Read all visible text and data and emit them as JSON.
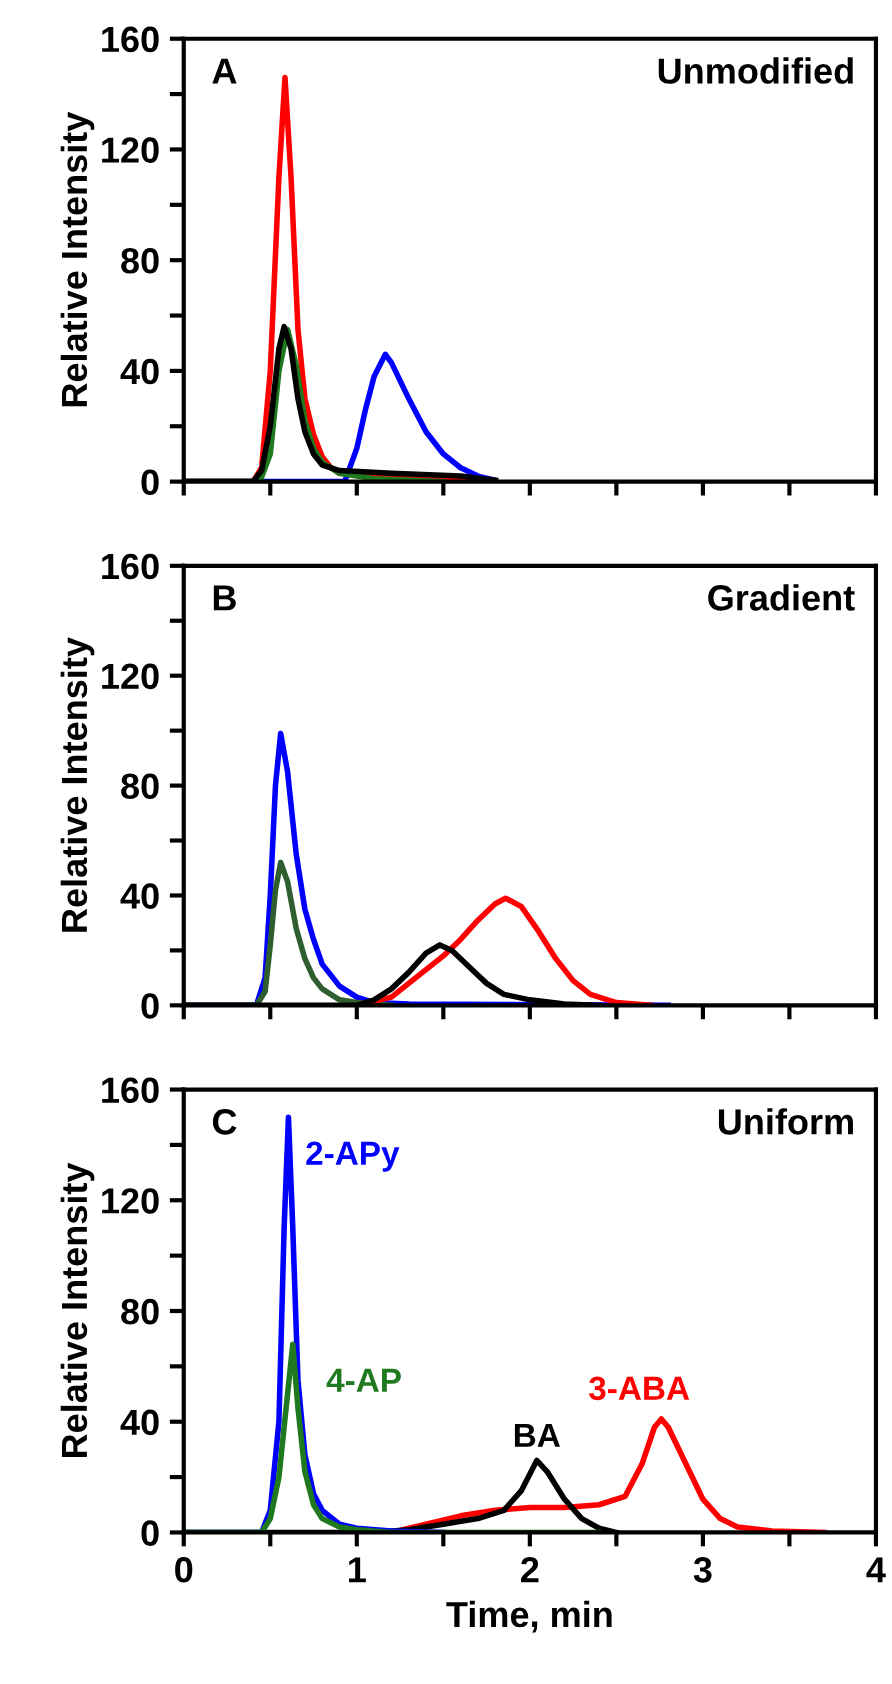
{
  "chart_data": [
    {
      "type": "line",
      "annotations": [
        "A",
        "Unmodified"
      ],
      "ylabel": "Relative Intensity",
      "xlim": [
        0,
        4
      ],
      "ylim": [
        0,
        160
      ],
      "tick_labels": "y",
      "grid": false,
      "legend": false,
      "xticks": [
        {
          "value": 0,
          "label": null
        },
        {
          "value": 0.5,
          "label": null
        },
        {
          "value": 1,
          "label": null
        },
        {
          "value": 1.5,
          "label": null
        },
        {
          "value": 2,
          "label": null
        },
        {
          "value": 2.5,
          "label": null
        },
        {
          "value": 3,
          "label": null
        },
        {
          "value": 3.5,
          "label": null
        },
        {
          "value": 4,
          "label": null
        }
      ],
      "yticks": [
        0,
        {
          "value": 20,
          "label": null
        },
        40,
        {
          "value": 60,
          "label": null
        },
        80,
        {
          "value": 100,
          "label": null
        },
        120,
        {
          "value": 140,
          "label": null
        },
        160
      ],
      "series": [
        {
          "color": "#ff0000",
          "x": [
            0,
            0.4,
            0.45,
            0.5,
            0.55,
            0.585,
            0.62,
            0.66,
            0.7,
            0.75,
            0.8,
            0.85,
            0.9,
            1.3,
            1.8
          ],
          "values": [
            0,
            0,
            5,
            40,
            110,
            146,
            110,
            55,
            30,
            17,
            9,
            5,
            3,
            1,
            0
          ]
        },
        {
          "color": "#0000ff",
          "x": [
            0,
            0.93,
            1.0,
            1.05,
            1.1,
            1.165,
            1.2,
            1.3,
            1.4,
            1.5,
            1.6,
            1.7,
            1.8
          ],
          "values": [
            0,
            0,
            12,
            26,
            38,
            46,
            43,
            30,
            18,
            10,
            5,
            2,
            0.5
          ]
        },
        {
          "color": "#1f7a1f",
          "x": [
            0,
            0.44,
            0.5,
            0.55,
            0.6,
            0.65,
            0.7,
            0.75,
            0.8,
            0.9,
            1.1,
            1.5
          ],
          "values": [
            0,
            0,
            10,
            40,
            55,
            42,
            22,
            12,
            7,
            3,
            1,
            0
          ]
        },
        {
          "color": "#000000",
          "x": [
            0,
            0.4,
            0.45,
            0.5,
            0.55,
            0.58,
            0.62,
            0.66,
            0.7,
            0.75,
            0.8,
            0.9,
            1.2,
            1.6,
            1.8
          ],
          "values": [
            0,
            0,
            4,
            20,
            48,
            56,
            48,
            30,
            18,
            10,
            6,
            4,
            3,
            2,
            0.5
          ]
        }
      ]
    },
    {
      "type": "line",
      "annotations": [
        "B",
        "Gradient"
      ],
      "ylabel": "Relative Intensity",
      "xlim": [
        0,
        4
      ],
      "ylim": [
        0,
        160
      ],
      "tick_labels": "y",
      "grid": false,
      "legend": false,
      "xticks": [
        {
          "value": 0,
          "label": null
        },
        {
          "value": 0.5,
          "label": null
        },
        {
          "value": 1,
          "label": null
        },
        {
          "value": 1.5,
          "label": null
        },
        {
          "value": 2,
          "label": null
        },
        {
          "value": 2.5,
          "label": null
        },
        {
          "value": 3,
          "label": null
        },
        {
          "value": 3.5,
          "label": null
        },
        {
          "value": 4,
          "label": null
        }
      ],
      "yticks": [
        0,
        {
          "value": 20,
          "label": null
        },
        40,
        {
          "value": 60,
          "label": null
        },
        80,
        {
          "value": 100,
          "label": null
        },
        120,
        {
          "value": 140,
          "label": null
        },
        160
      ],
      "series": [
        {
          "color": "#0000ff",
          "x": [
            0,
            0.42,
            0.47,
            0.5,
            0.53,
            0.56,
            0.6,
            0.65,
            0.7,
            0.75,
            0.8,
            0.9,
            1.0,
            1.1,
            1.3,
            2.8
          ],
          "values": [
            0,
            0,
            10,
            40,
            80,
            99,
            85,
            55,
            35,
            24,
            15,
            7,
            3,
            1,
            0.5,
            0
          ]
        },
        {
          "color": "#2f5f2f",
          "x": [
            0,
            0.42,
            0.47,
            0.5,
            0.53,
            0.56,
            0.6,
            0.65,
            0.7,
            0.75,
            0.8,
            0.9,
            1.0,
            1.2
          ],
          "values": [
            0,
            0,
            5,
            22,
            42,
            52,
            45,
            28,
            17,
            10,
            6,
            2,
            1,
            0
          ]
        },
        {
          "color": "#ff0000",
          "x": [
            1.0,
            1.2,
            1.4,
            1.5,
            1.6,
            1.7,
            1.8,
            1.86,
            1.95,
            2.05,
            2.15,
            2.25,
            2.35,
            2.5,
            2.7
          ],
          "values": [
            0,
            3,
            13,
            18,
            24,
            31,
            37,
            39,
            36,
            27,
            17,
            9,
            4,
            1,
            0
          ]
        },
        {
          "color": "#000000",
          "x": [
            0,
            1.0,
            1.1,
            1.2,
            1.3,
            1.4,
            1.48,
            1.55,
            1.65,
            1.75,
            1.85,
            2.0,
            2.2,
            2.4
          ],
          "values": [
            0,
            0,
            2,
            6,
            12,
            19,
            22,
            20,
            14,
            8,
            4,
            2,
            0.5,
            0
          ]
        }
      ]
    },
    {
      "type": "line",
      "annotations": [
        "C",
        "Uniform"
      ],
      "xlabel": "Time, min",
      "ylabel": "Relative Intensity",
      "xlim": [
        0,
        4
      ],
      "ylim": [
        0,
        160
      ],
      "grid": false,
      "legend": false,
      "xticks": [
        0,
        {
          "value": 0.5,
          "label": null
        },
        1,
        {
          "value": 1.5,
          "label": null
        },
        2,
        {
          "value": 2.5,
          "label": null
        },
        3,
        {
          "value": 3.5,
          "label": null
        },
        4
      ],
      "yticks": [
        0,
        {
          "value": 20,
          "label": null
        },
        40,
        {
          "value": 60,
          "label": null
        },
        80,
        {
          "value": 100,
          "label": null
        },
        120,
        {
          "value": 140,
          "label": null
        },
        160
      ],
      "series": [
        {
          "name": "3-ABA",
          "color": "#ff0000",
          "x": [
            1.2,
            1.4,
            1.6,
            1.8,
            2.0,
            2.2,
            2.4,
            2.55,
            2.65,
            2.72,
            2.76,
            2.8,
            2.9,
            3.0,
            3.1,
            3.2,
            3.4,
            3.7
          ],
          "values": [
            0,
            3,
            6,
            8,
            9,
            9,
            10,
            13,
            25,
            38,
            41,
            38,
            25,
            12,
            5,
            2,
            0.5,
            0
          ]
        },
        {
          "name": "BA",
          "color": "#000000",
          "x": [
            0,
            1.1,
            1.3,
            1.5,
            1.7,
            1.85,
            1.95,
            2.04,
            2.1,
            2.2,
            2.3,
            2.4,
            2.5
          ],
          "values": [
            0,
            0,
            1,
            3,
            5,
            8,
            15,
            26,
            22,
            12,
            5,
            1.5,
            0
          ]
        },
        {
          "name": "2-APy",
          "color": "#0000ff",
          "x": [
            0,
            0.45,
            0.5,
            0.55,
            0.58,
            0.605,
            0.63,
            0.66,
            0.7,
            0.75,
            0.8,
            0.9,
            1.0,
            1.2,
            1.5
          ],
          "values": [
            0,
            0,
            8,
            40,
            110,
            150,
            110,
            55,
            28,
            14,
            8,
            3,
            1.5,
            0.5,
            0
          ]
        },
        {
          "name": "4-AP",
          "color": "#1f7a1f",
          "x": [
            0,
            0.45,
            0.5,
            0.55,
            0.6,
            0.63,
            0.66,
            0.7,
            0.75,
            0.8,
            0.9,
            1.0,
            1.2,
            2.4
          ],
          "values": [
            0,
            0,
            5,
            20,
            50,
            68,
            45,
            22,
            10,
            5,
            2,
            1,
            0,
            0
          ]
        }
      ]
    }
  ]
}
